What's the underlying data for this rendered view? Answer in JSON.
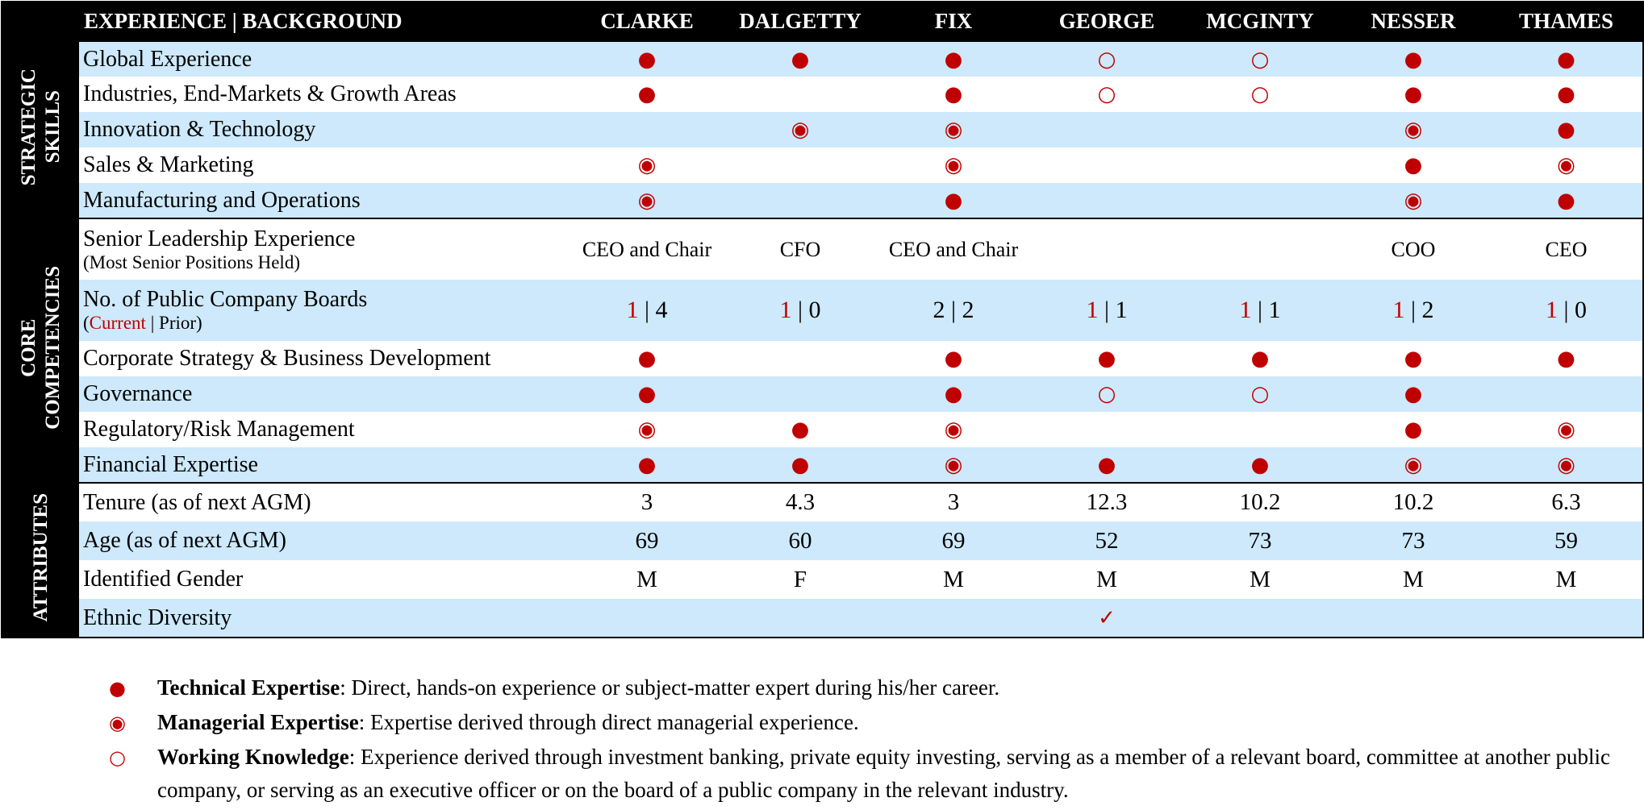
{
  "header": {
    "title": "EXPERIENCE | BACKGROUND",
    "columns": [
      "CLARKE",
      "DALGETTY",
      "FIX",
      "GEORGE",
      "MCGINTY",
      "NESSER",
      "THAMES"
    ]
  },
  "sections": [
    {
      "label": [
        "STRATEGIC",
        "SKILLS"
      ],
      "rows": [
        {
          "label": "Global Experience",
          "cells": [
            "●",
            "●",
            "●",
            "○",
            "○",
            "●",
            "●"
          ]
        },
        {
          "label": "Industries, End-Markets & Growth Areas",
          "cells": [
            "●",
            null,
            "●",
            "○",
            "○",
            "●",
            "●"
          ]
        },
        {
          "label": "Innovation & Technology",
          "cells": [
            null,
            "◉",
            "◉",
            null,
            null,
            "◉",
            "●"
          ]
        },
        {
          "label": "Sales & Marketing",
          "cells": [
            "◉",
            null,
            "◉",
            null,
            null,
            "●",
            "◉"
          ]
        },
        {
          "label": "Manufacturing and Operations",
          "cells": [
            "◉",
            null,
            "●",
            null,
            null,
            "◉",
            "●"
          ]
        }
      ]
    },
    {
      "label": [
        "CORE",
        "COMPETENCIES"
      ],
      "rows": [
        {
          "label": "Senior Leadership Experience",
          "sublabel": "(Most Senior Positions Held)",
          "cells": [
            "CEO and Chair",
            "CFO",
            "CEO and Chair",
            null,
            null,
            "COO",
            "CEO"
          ]
        },
        {
          "label": "No. of Public Company Boards",
          "sublabel": [
            {
              "text": "("
            },
            {
              "text": "Current",
              "color": "#c00000"
            },
            {
              "text": " | Prior)"
            }
          ],
          "cells": [
            [
              {
                "text": "1",
                "color": "#c00000"
              },
              {
                "text": " | 4"
              }
            ],
            [
              {
                "text": "1",
                "color": "#c00000"
              },
              {
                "text": " | 0"
              }
            ],
            "2 | 2",
            [
              {
                "text": "1",
                "color": "#c00000"
              },
              {
                "text": " | 1"
              }
            ],
            [
              {
                "text": "1",
                "color": "#c00000"
              },
              {
                "text": " | 1"
              }
            ],
            [
              {
                "text": "1",
                "color": "#c00000"
              },
              {
                "text": " | 2"
              }
            ],
            [
              {
                "text": "1",
                "color": "#c00000"
              },
              {
                "text": " | 0"
              }
            ]
          ]
        },
        {
          "label": "Corporate Strategy & Business Development",
          "cells": [
            "●",
            null,
            "●",
            "●",
            "●",
            "●",
            "●"
          ]
        },
        {
          "label": "Governance",
          "cells": [
            "●",
            null,
            "●",
            "○",
            "○",
            "●",
            null
          ]
        },
        {
          "label": "Regulatory/Risk Management",
          "cells": [
            "◉",
            "●",
            "◉",
            null,
            null,
            "●",
            "◉"
          ]
        },
        {
          "label": "Financial Expertise",
          "cells": [
            "●",
            "●",
            "◉",
            "●",
            "●",
            "◉",
            "◉"
          ]
        }
      ]
    },
    {
      "label": [
        "ATTRIBUTES"
      ],
      "rows": [
        {
          "label": "Tenure (as of next AGM)",
          "cells": [
            3,
            4.3,
            3,
            12.3,
            10.2,
            10.2,
            6.3
          ]
        },
        {
          "label": "Age (as of next AGM)",
          "cells": [
            69,
            60,
            69,
            52,
            73,
            73,
            59
          ]
        },
        {
          "label": "Identified Gender",
          "cells": [
            "M",
            "F",
            "M",
            "M",
            "M",
            "M",
            "M"
          ]
        },
        {
          "label": "Ethnic Diversity",
          "cells": [
            null,
            null,
            null,
            "✓",
            null,
            null,
            null
          ]
        }
      ]
    }
  ],
  "legend": [
    {
      "symbol": "●",
      "term": "Technical Expertise",
      "description": ": Direct, hands-on experience or subject-matter expert during his/her career."
    },
    {
      "symbol": "◉",
      "term": "Managerial Expertise",
      "description": ": Expertise derived through direct managerial experience."
    },
    {
      "symbol": "○",
      "term": "Working Knowledge",
      "description": ": Experience derived through investment banking, private equity investing, serving as a member of a relevant board, committee at another public company, or serving as an executive officer or on the board of a public company in the relevant industry."
    }
  ]
}
